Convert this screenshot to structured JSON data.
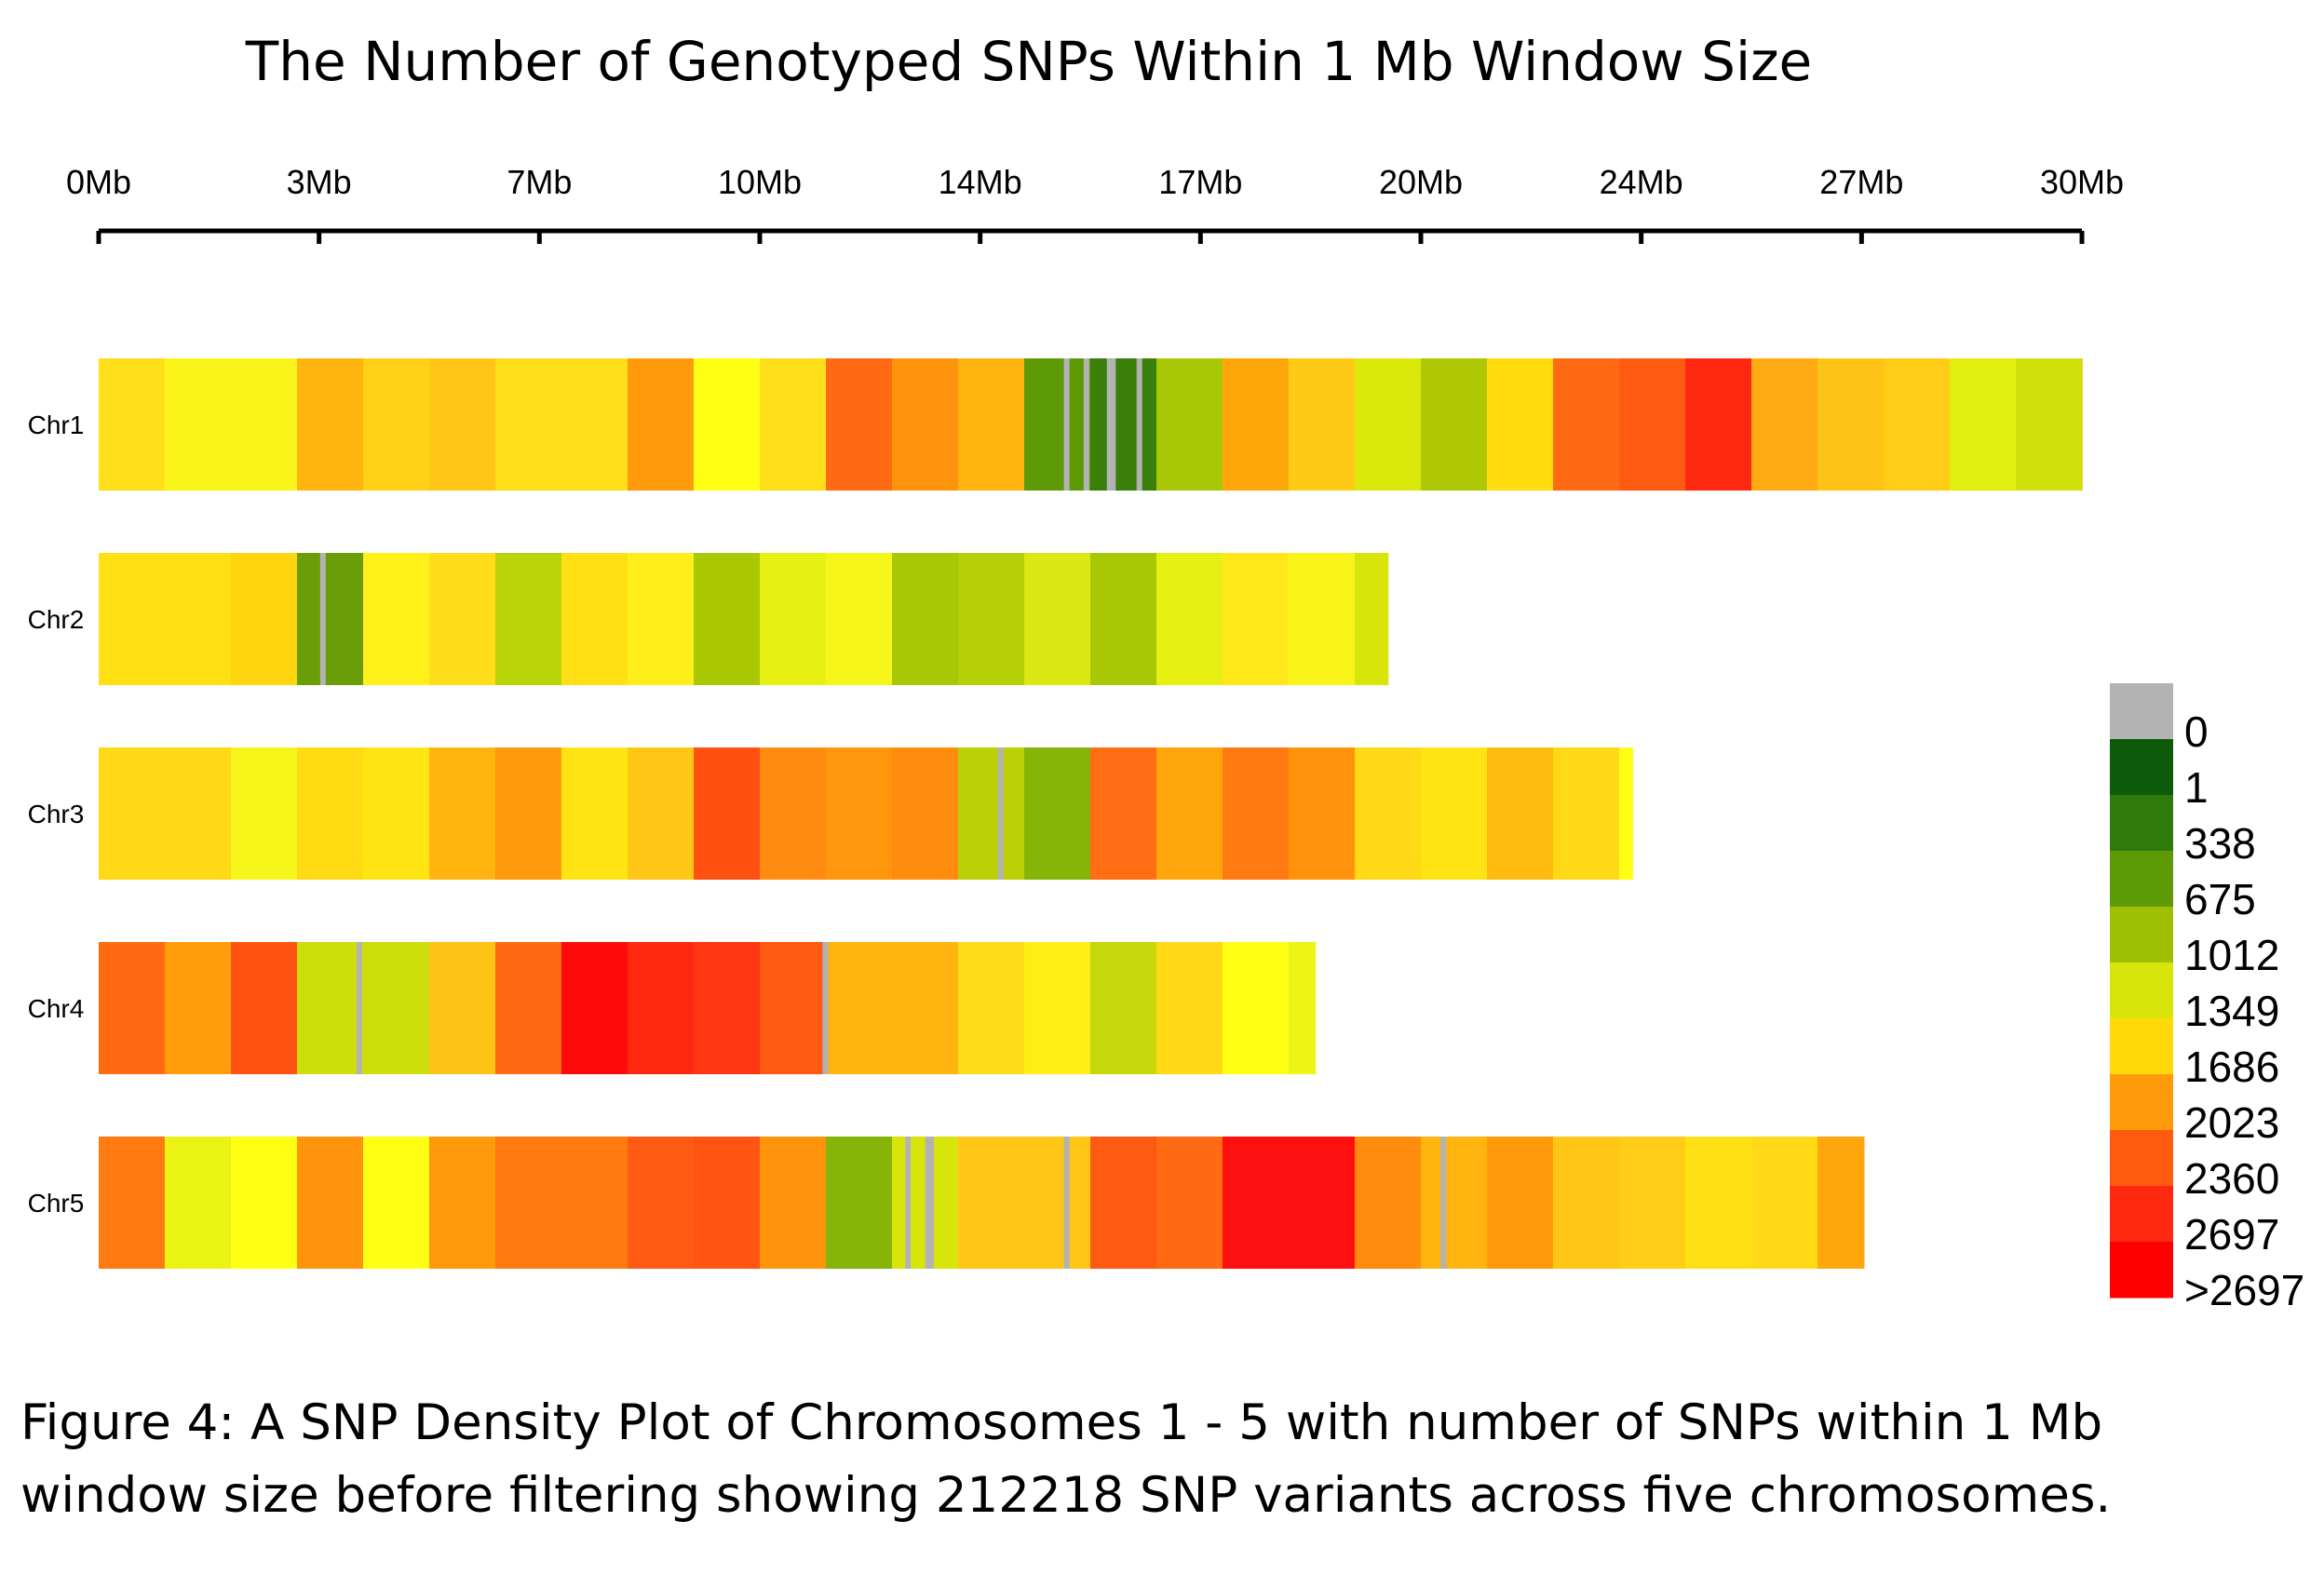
{
  "chart_data": {
    "type": "heatmap",
    "title": "The Number of Genotyped SNPs Within 1 Mb Window Size",
    "window_size_mb": 1,
    "x_axis": {
      "ticks": [
        "0Mb",
        "3Mb",
        "7Mb",
        "10Mb",
        "14Mb",
        "17Mb",
        "20Mb",
        "24Mb",
        "27Mb",
        "30Mb"
      ],
      "range_mb": [
        0,
        30
      ]
    },
    "legend": {
      "placement": "right",
      "bins": [
        {
          "label": "0",
          "color": "#b3b3b3"
        },
        {
          "label": "1",
          "color": "#0e5a0b"
        },
        {
          "label": "338",
          "color": "#2e7a0a"
        },
        {
          "label": "675",
          "color": "#5e9a06"
        },
        {
          "label": "1012",
          "color": "#9ebf04"
        },
        {
          "label": "1349",
          "color": "#d8e50a"
        },
        {
          "label": "1686",
          "color": "#ffd90a"
        },
        {
          "label": "2023",
          "color": "#ff9a0a"
        },
        {
          "label": "2360",
          "color": "#ff5a0f"
        },
        {
          "label": "2697",
          "color": "#ff2810"
        },
        {
          "label": ">2697",
          "color": "#ff0000"
        }
      ]
    },
    "chromosomes": [
      {
        "name": "Chr1",
        "length_mb": 30,
        "windows": [
          "#ffdf1a",
          "#f9f51a",
          "#f9f51a",
          "#ffb40f",
          "#ffd016",
          "#ffc616",
          "#ffdf1a",
          "#ffdf1a",
          "#ff9a0a",
          "#ffff14",
          "#ffdf1a",
          "#ff6a12",
          "#ff940c",
          "#ffb40f",
          "#5e9a06",
          "#3a7f0a",
          "#a8c806",
          "#ffa70a",
          "#ffca16",
          "#dbe80c",
          "#aec806",
          "#ffdb10",
          "#ff6a12",
          "#ff5a12",
          "#ff2810",
          "#ffaa12",
          "#ffc216",
          "#ffcc16",
          "#e2ef10",
          "#cfe00a",
          "#ffc51a"
        ],
        "gaps_mb": [
          14.6,
          14.9,
          15.25,
          15.3,
          15.7
        ]
      },
      {
        "name": "Chr2",
        "length_mb": 19.5,
        "windows": [
          "#ffe014",
          "#ffe014",
          "#ffd510",
          "#6a9e08",
          "#fff01a",
          "#ffdd1a",
          "#b9d406",
          "#ffe014",
          "#ffee1a",
          "#aac804",
          "#e6f012",
          "#f5f51a",
          "#a8c806",
          "#b5d006",
          "#dbe814",
          "#a8c806",
          "#e6f012",
          "#ffe81a",
          "#f9f51a",
          "#d8e50a"
        ],
        "gaps_mb": [
          3.35
        ]
      },
      {
        "name": "Chr3",
        "length_mb": 23.2,
        "windows": [
          "#ffd816",
          "#ffd816",
          "#f5f51a",
          "#ffdb14",
          "#ffe414",
          "#ffb40f",
          "#ff9a0a",
          "#ffe414",
          "#ffc616",
          "#ff5012",
          "#ff8c10",
          "#ff960c",
          "#ff8c0c",
          "#bcd008",
          "#86b408",
          "#ff6e12",
          "#ffa60c",
          "#ff7a10",
          "#ff940c",
          "#ffd816",
          "#ffe414",
          "#ffbc10",
          "#ffd816",
          "#ffff14"
        ],
        "gaps_mb": [
          13.6
        ]
      },
      {
        "name": "Chr4",
        "length_mb": 18.4,
        "windows": [
          "#ff6a12",
          "#ff9e0a",
          "#ff5312",
          "#cddf0a",
          "#cddf0a",
          "#ffc216",
          "#ff6a12",
          "#ff0a0a",
          "#ff2810",
          "#ff3612",
          "#ff5a12",
          "#ffb40f",
          "#ffb40f",
          "#ffdd1a",
          "#ffee14",
          "#c5d80a",
          "#ffd816",
          "#ffff14",
          "#eef514"
        ],
        "gaps_mb": [
          3.9,
          10.95
        ]
      },
      {
        "name": "Chr5",
        "length_mb": 26.7,
        "windows": [
          "#ff7a10",
          "#ebf314",
          "#ffff14",
          "#ff940c",
          "#ffff14",
          "#ff9a0a",
          "#ff7a10",
          "#ff7a10",
          "#ff5a12",
          "#ff5412",
          "#ff940c",
          "#86b408",
          "#d8e50a",
          "#ffc616",
          "#ffc616",
          "#ff5a12",
          "#ff6a12",
          "#ff1010",
          "#ff1010",
          "#ff8c0c",
          "#ffb40f",
          "#ff9a0a",
          "#ffc616",
          "#ffcc16",
          "#ffe014",
          "#ffd816",
          "#ffa60c"
        ],
        "gaps_mb": [
          12.2,
          12.5,
          12.55,
          14.6,
          20.3
        ]
      }
    ]
  },
  "caption": "Figure 4: A SNP Density Plot of Chromosomes 1 - 5 with number of SNPs within 1 Mb window size before filtering showing 212218 SNP variants across five chromosomes."
}
